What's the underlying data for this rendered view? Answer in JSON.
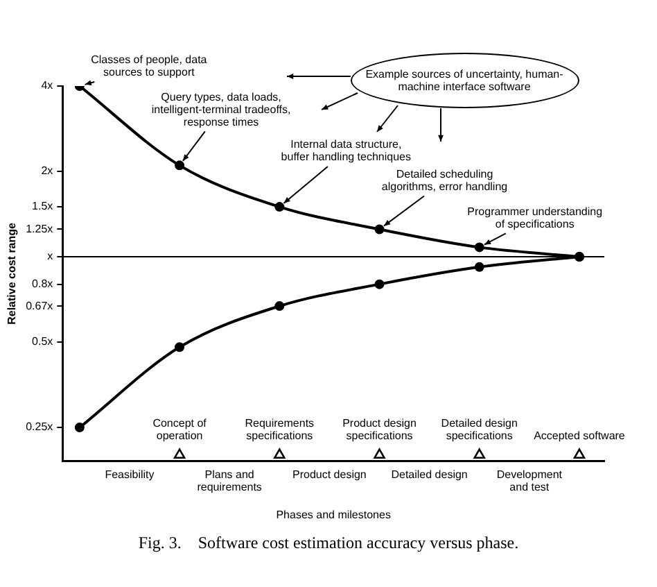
{
  "chart_data": {
    "type": "line",
    "xlabel": "Phases and milestones",
    "ylabel": "Relative cost range",
    "categories": [
      null,
      "Concept of operation",
      "Requirements specifications",
      "Product design specifications",
      "Detailed design specifications",
      "Accepted software"
    ],
    "series": [
      {
        "color": "#000000",
        "values": [
          4,
          2.1,
          1.5,
          1.25,
          1.08,
          1
        ]
      },
      {
        "color": "#000000",
        "values": [
          0.25,
          0.48,
          0.67,
          0.8,
          0.92,
          1
        ]
      },
      {
        "type": "scatter",
        "marker": "triangle",
        "color": "#000000",
        "values": [
          null,
          0.2,
          0.2,
          0.2,
          0.2,
          0.2
        ]
      }
    ],
    "log": "y",
    "ylim": [
      0.19,
      4
    ],
    "yticks": [
      {
        "value": 0.25,
        "label": "0.25x"
      },
      {
        "value": 0.5,
        "label": "0.5x"
      },
      {
        "value": 0.67,
        "label": "0.67x"
      },
      {
        "value": 0.8,
        "label": "0.8x"
      },
      {
        "value": 1,
        "label": "x"
      },
      {
        "value": 1.25,
        "label": "1.25x"
      },
      {
        "value": 1.5,
        "label": "1.5x"
      },
      {
        "value": 2,
        "label": "2x"
      },
      {
        "value": 4,
        "label": "4x"
      }
    ],
    "grid": false,
    "legend": false,
    "marker": "circle",
    "line_style": "solid",
    "ref_lines": [
      {
        "axis": "y",
        "value": 1,
        "color": "#000000"
      }
    ],
    "annotations": [
      "Classes of people, data sources to support",
      {
        "text": "Query types, data loads, intelligent-terminal tradeoffs, response times",
        "x": "Concept of operation",
        "y": 2.1
      },
      {
        "text": "Internal data structure, buffer handling techniques",
        "x": "Requirements specifications",
        "y": 1.5
      },
      {
        "text": "Detailed scheduling algorithms, error handling",
        "x": "Product design specifications",
        "y": 1.25
      },
      {
        "text": "Programmer understanding of specifications",
        "x": "Detailed design specifications",
        "y": 1.08
      },
      "Example sources of uncertainty, human-machine interface software",
      "Feasibility",
      "Plans and requirements",
      "Product design",
      "Detailed design",
      "Development and test",
      "Fig. 3.    Software cost estimation accuracy versus phase."
    ]
  }
}
